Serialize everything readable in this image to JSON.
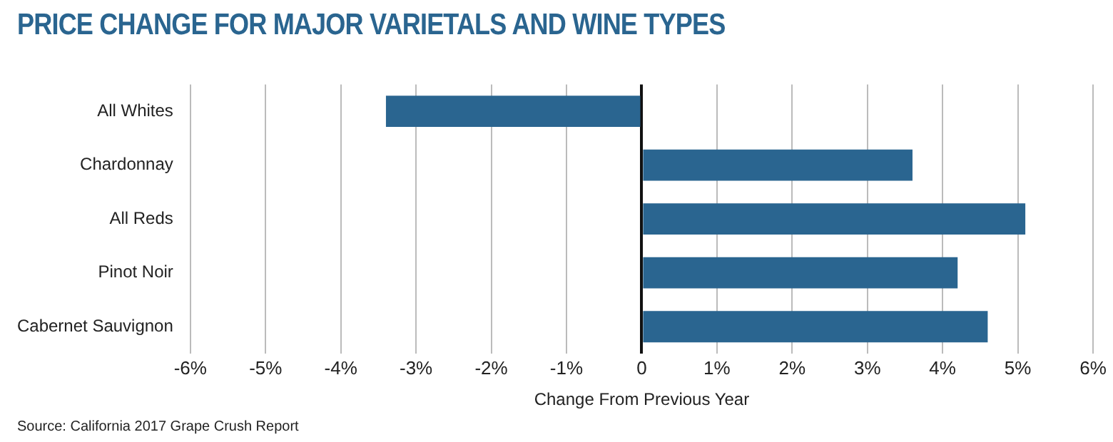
{
  "chart_data": {
    "type": "bar",
    "orientation": "horizontal",
    "title": "PRICE CHANGE FOR MAJOR VARIETALS AND WINE TYPES",
    "xlabel": "Change From Previous Year",
    "categories": [
      "All Whites",
      "Chardonnay",
      "All Reds",
      "Pinot Noir",
      "Cabernet Sauvignon"
    ],
    "values": [
      -3.4,
      3.6,
      5.1,
      4.2,
      4.6
    ],
    "color": "#2a6590",
    "xlim": [
      -6,
      6
    ],
    "xticks": [
      {
        "value": -6,
        "label": "-6%"
      },
      {
        "value": -5,
        "label": "-5%"
      },
      {
        "value": -4,
        "label": "-4%"
      },
      {
        "value": -3,
        "label": "-3%"
      },
      {
        "value": -2,
        "label": "-2%"
      },
      {
        "value": -1,
        "label": "-1%"
      },
      0,
      {
        "value": 1,
        "label": "1%"
      },
      {
        "value": 2,
        "label": "2%"
      },
      {
        "value": 3,
        "label": "3%"
      },
      {
        "value": 4,
        "label": "4%"
      },
      {
        "value": 5,
        "label": "5%"
      },
      {
        "value": 6,
        "label": "6%"
      }
    ],
    "grid": "x",
    "legend": false,
    "annotations": [
      "Source: California 2017 Grape Crush Report"
    ]
  }
}
